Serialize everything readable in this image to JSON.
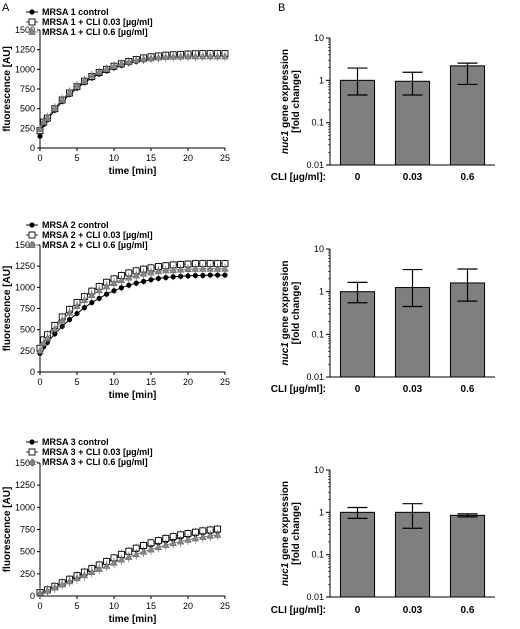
{
  "panel_labels": [
    "A",
    "B"
  ],
  "chart_data": [
    {
      "type": "line",
      "panel": "A",
      "xlabel": "time [min]",
      "ylabel": "fluorescence [AU]",
      "xlim": [
        0,
        25
      ],
      "ylim": [
        0,
        1500
      ],
      "xticks": [
        "0",
        "5",
        "10",
        "15",
        "20",
        "25"
      ],
      "yticks": [
        "0",
        "250",
        "500",
        "750",
        "1000",
        "1250",
        "1500"
      ],
      "legend_position": "top-left",
      "series": [
        {
          "name": "MRSA 1 control",
          "marker": "circle",
          "x": [
            0,
            0.5,
            1,
            2,
            3,
            4,
            5,
            6,
            7,
            8,
            9,
            10,
            11,
            12,
            13,
            14,
            15,
            16,
            17,
            18,
            19,
            20,
            21,
            22,
            23,
            24,
            25
          ],
          "y": [
            150,
            300,
            360,
            480,
            590,
            680,
            760,
            830,
            890,
            940,
            980,
            1020,
            1050,
            1080,
            1100,
            1120,
            1135,
            1145,
            1155,
            1160,
            1165,
            1168,
            1170,
            1170,
            1170,
            1170,
            1170
          ]
        },
        {
          "name": "MRSA 1 + CLI 0.03 [µg/ml]",
          "marker": "square",
          "x": [
            0,
            0.5,
            1,
            2,
            3,
            4,
            5,
            6,
            7,
            8,
            9,
            10,
            11,
            12,
            13,
            14,
            15,
            16,
            17,
            18,
            19,
            20,
            21,
            22,
            23,
            24,
            25
          ],
          "y": [
            220,
            330,
            380,
            500,
            610,
            700,
            780,
            850,
            910,
            960,
            1000,
            1040,
            1070,
            1100,
            1125,
            1145,
            1160,
            1170,
            1180,
            1185,
            1190,
            1195,
            1198,
            1200,
            1200,
            1200,
            1200
          ]
        },
        {
          "name": "MRSA 1 + CLI 0.6 [µg/ml]",
          "marker": "triangle",
          "x": [
            0,
            0.5,
            1,
            2,
            3,
            4,
            5,
            6,
            7,
            8,
            9,
            10,
            11,
            12,
            13,
            14,
            15,
            16,
            17,
            18,
            19,
            20,
            21,
            22,
            23,
            24,
            25
          ],
          "y": [
            240,
            340,
            390,
            510,
            620,
            710,
            790,
            860,
            920,
            965,
            1005,
            1040,
            1070,
            1095,
            1115,
            1130,
            1140,
            1150,
            1155,
            1160,
            1162,
            1165,
            1165,
            1165,
            1165,
            1165,
            1165
          ]
        }
      ]
    },
    {
      "type": "line",
      "panel": "A",
      "xlabel": "time [min]",
      "ylabel": "fluorescence [AU]",
      "xlim": [
        0,
        25
      ],
      "ylim": [
        0,
        1500
      ],
      "xticks": [
        "0",
        "5",
        "10",
        "15",
        "20",
        "25"
      ],
      "yticks": [
        "0",
        "250",
        "500",
        "750",
        "1000",
        "1250",
        "1500"
      ],
      "legend_position": "top-left",
      "series": [
        {
          "name": "MRSA 2 control",
          "marker": "circle",
          "x": [
            0,
            0.5,
            1,
            2,
            3,
            4,
            5,
            6,
            7,
            8,
            9,
            10,
            11,
            12,
            13,
            14,
            15,
            16,
            17,
            18,
            19,
            20,
            21,
            22,
            23,
            24,
            25
          ],
          "y": [
            220,
            300,
            350,
            450,
            540,
            620,
            690,
            760,
            820,
            870,
            920,
            960,
            995,
            1025,
            1050,
            1070,
            1090,
            1105,
            1115,
            1125,
            1130,
            1135,
            1140,
            1140,
            1145,
            1145,
            1145
          ]
        },
        {
          "name": "MRSA 2 + CLI 0.03 [µg/ml]",
          "marker": "square",
          "x": [
            0,
            0.5,
            1,
            2,
            3,
            4,
            5,
            6,
            7,
            8,
            9,
            10,
            11,
            12,
            13,
            14,
            15,
            16,
            17,
            18,
            19,
            20,
            21,
            22,
            23,
            24,
            25
          ],
          "y": [
            280,
            380,
            440,
            550,
            650,
            740,
            820,
            890,
            955,
            1010,
            1060,
            1100,
            1140,
            1170,
            1195,
            1215,
            1230,
            1245,
            1255,
            1265,
            1270,
            1275,
            1280,
            1280,
            1280,
            1280,
            1280
          ]
        },
        {
          "name": "MRSA 2 + CLI 0.6 [µg/ml]",
          "marker": "triangle",
          "x": [
            0,
            0.5,
            1,
            2,
            3,
            4,
            5,
            6,
            7,
            8,
            9,
            10,
            11,
            12,
            13,
            14,
            15,
            16,
            17,
            18,
            19,
            20,
            21,
            22,
            23,
            24,
            25
          ],
          "y": [
            250,
            340,
            400,
            510,
            610,
            700,
            780,
            850,
            910,
            965,
            1010,
            1050,
            1085,
            1115,
            1140,
            1160,
            1175,
            1190,
            1200,
            1205,
            1210,
            1215,
            1218,
            1220,
            1220,
            1220,
            1220
          ]
        }
      ]
    },
    {
      "type": "line",
      "panel": "A",
      "xlabel": "time [min]",
      "ylabel": "fluorescence [AU]",
      "xlim": [
        0,
        25
      ],
      "ylim": [
        0,
        1500
      ],
      "xticks": [
        "0",
        "5",
        "10",
        "15",
        "20",
        "25"
      ],
      "yticks": [
        "0",
        "250",
        "500",
        "750",
        "1000",
        "1250",
        "1500"
      ],
      "legend_position": "top-left",
      "series": [
        {
          "name": "MRSA 3 control",
          "marker": "circle",
          "x": [
            0,
            1,
            2,
            3,
            4,
            5,
            6,
            7,
            8,
            9,
            10,
            11,
            12,
            13,
            14,
            15,
            16,
            17,
            18,
            19,
            20,
            21,
            22,
            23,
            24
          ],
          "y": [
            30,
            60,
            100,
            140,
            180,
            220,
            260,
            300,
            340,
            380,
            420,
            455,
            490,
            520,
            550,
            575,
            600,
            620,
            640,
            660,
            680,
            695,
            710,
            720,
            730
          ]
        },
        {
          "name": "MRSA 3 + CLI 0.03 [µg/ml]",
          "marker": "square",
          "x": [
            0,
            1,
            2,
            3,
            4,
            5,
            6,
            7,
            8,
            9,
            10,
            11,
            12,
            13,
            14,
            15,
            16,
            17,
            18,
            19,
            20,
            21,
            22,
            23,
            24
          ],
          "y": [
            40,
            70,
            110,
            150,
            190,
            230,
            270,
            310,
            350,
            390,
            430,
            470,
            505,
            540,
            570,
            600,
            625,
            650,
            670,
            690,
            705,
            720,
            735,
            745,
            755
          ]
        },
        {
          "name": "MRSA 3 + CLI 0.6 [µg/ml]",
          "marker": "triangle",
          "x": [
            0,
            1,
            2,
            3,
            4,
            5,
            6,
            7,
            8,
            9,
            10,
            11,
            12,
            13,
            14,
            15,
            16,
            17,
            18,
            19,
            20,
            21,
            22,
            23,
            24
          ],
          "y": [
            35,
            60,
            95,
            130,
            165,
            200,
            235,
            270,
            305,
            340,
            375,
            410,
            440,
            470,
            500,
            525,
            550,
            575,
            595,
            615,
            635,
            650,
            665,
            680,
            690
          ]
        }
      ]
    },
    {
      "type": "bar",
      "panel": "B",
      "ylabel_prefix": "nuc1",
      "ylabel_line1": " gene expression",
      "ylabel_line2": "[fold change]",
      "xlabel": "CLI [µg/ml]:",
      "categories": [
        "0",
        "0.03",
        "0.6"
      ],
      "values": [
        1.0,
        0.95,
        2.2
      ],
      "err_low": [
        0.45,
        0.45,
        0.8
      ],
      "err_high": [
        1.95,
        1.55,
        2.55
      ],
      "yscale": "log",
      "ylim": [
        0.01,
        10
      ],
      "yticks": [
        "0.01",
        "0.1",
        "1",
        "10"
      ]
    },
    {
      "type": "bar",
      "panel": "B",
      "ylabel_prefix": "nuc1",
      "ylabel_line1": " gene expression",
      "ylabel_line2": "[fold change]",
      "xlabel": "CLI [µg/ml]:",
      "categories": [
        "0",
        "0.03",
        "0.6"
      ],
      "values": [
        1.0,
        1.25,
        1.6
      ],
      "err_low": [
        0.55,
        0.45,
        0.6
      ],
      "err_high": [
        1.65,
        3.3,
        3.4
      ],
      "yscale": "log",
      "ylim": [
        0.01,
        10
      ],
      "yticks": [
        "0.01",
        "0.1",
        "1",
        "10"
      ]
    },
    {
      "type": "bar",
      "panel": "B",
      "ylabel_prefix": "nuc1",
      "ylabel_line1": " gene expression",
      "ylabel_line2": "[fold change]",
      "xlabel": "CLI [µg/ml]:",
      "categories": [
        "0",
        "0.03",
        "0.6"
      ],
      "values": [
        1.0,
        1.0,
        0.85
      ],
      "err_low": [
        0.72,
        0.42,
        0.78
      ],
      "err_high": [
        1.3,
        1.6,
        0.92
      ],
      "yscale": "log",
      "ylim": [
        0.01,
        10
      ],
      "yticks": [
        "0.01",
        "0.1",
        "1",
        "10"
      ]
    }
  ]
}
